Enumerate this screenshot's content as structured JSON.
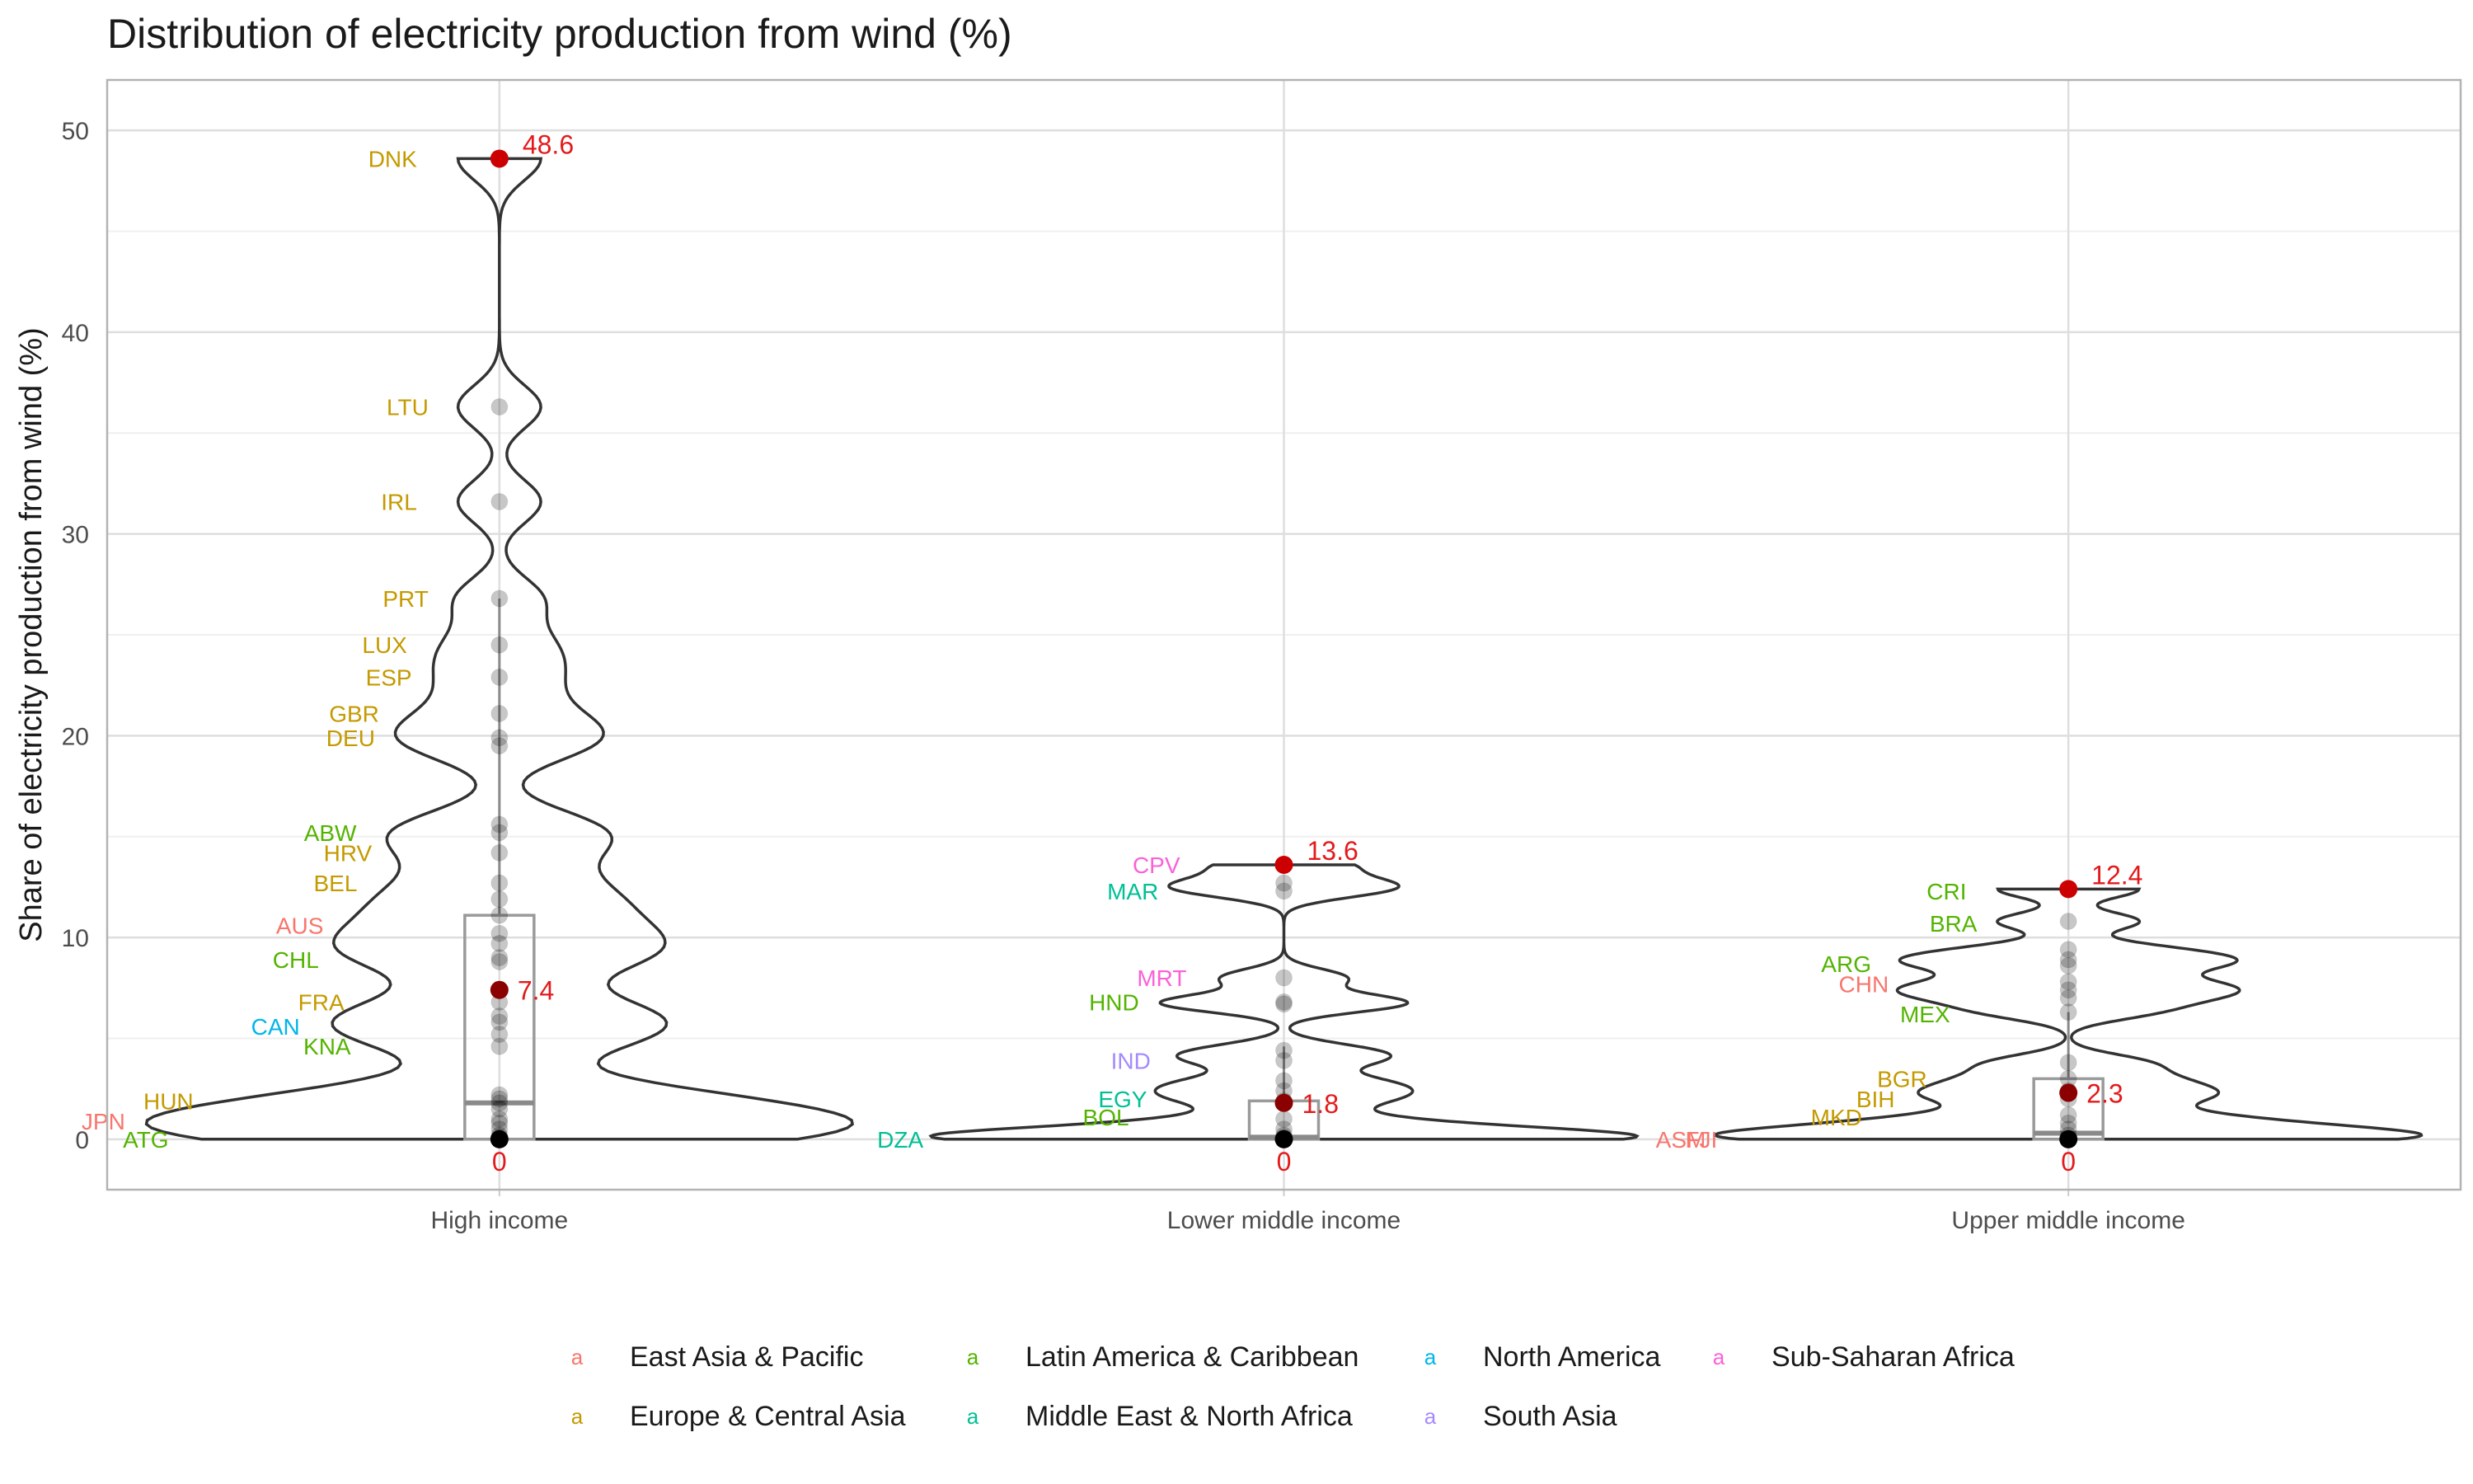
{
  "chart_data": {
    "type": "violin",
    "title": "Distribution of electricity production from wind (%)",
    "xlabel": "",
    "ylabel": "Share of electricity production from wind (%)",
    "ylim": [
      -2.5,
      52.5
    ],
    "yticks": [
      0,
      10,
      20,
      30,
      40,
      50
    ],
    "grid": true,
    "legend_position": "bottom",
    "legend_key_glyph": "a",
    "regions": [
      {
        "name": "East Asia & Pacific",
        "color": "#F8766D"
      },
      {
        "name": "Europe & Central Asia",
        "color": "#C49A00"
      },
      {
        "name": "Latin America & Caribbean",
        "color": "#53B400"
      },
      {
        "name": "Middle East & North Africa",
        "color": "#00C094"
      },
      {
        "name": "North America",
        "color": "#00B6EB"
      },
      {
        "name": "South Asia",
        "color": "#A58AFF"
      },
      {
        "name": "Sub-Saharan Africa",
        "color": "#FB61D7"
      }
    ],
    "categories": [
      "High income",
      "Lower middle income",
      "Upper middle income"
    ],
    "groups": [
      {
        "name": "High income",
        "min": 0,
        "q1": 0,
        "median": 1.8,
        "q3": 11.1,
        "max": 48.6,
        "whisker_high": 26.8,
        "mean": 7.4,
        "labels": {
          "max": "48.6",
          "mean": "7.4",
          "min": "0"
        },
        "points": [
          0,
          0,
          0.1,
          0.2,
          0.5,
          0.8,
          1.0,
          1.5,
          1.8,
          2.0,
          2.2,
          4.6,
          5.2,
          5.8,
          6.1,
          6.8,
          8.8,
          9.0,
          9.7,
          10.2,
          11.1,
          11.9,
          12.7,
          14.2,
          15.2,
          15.6,
          19.5,
          19.9,
          21.1,
          22.9,
          24.5,
          26.8,
          31.6,
          36.3,
          48.6
        ],
        "country_labels": [
          {
            "code": "DNK",
            "value": 48.6,
            "region": 1
          },
          {
            "code": "LTU",
            "value": 36.3,
            "region": 1
          },
          {
            "code": "IRL",
            "value": 31.6,
            "region": 1
          },
          {
            "code": "PRT",
            "value": 26.8,
            "region": 1
          },
          {
            "code": "LUX",
            "value": 24.5,
            "region": 1
          },
          {
            "code": "ESP",
            "value": 22.9,
            "region": 1
          },
          {
            "code": "GBR",
            "value": 21.1,
            "region": 1
          },
          {
            "code": "DEU",
            "value": 19.9,
            "region": 1
          },
          {
            "code": "ABW",
            "value": 15.2,
            "region": 2
          },
          {
            "code": "HRV",
            "value": 14.2,
            "region": 1
          },
          {
            "code": "BEL",
            "value": 12.7,
            "region": 1
          },
          {
            "code": "AUS",
            "value": 10.6,
            "region": 0
          },
          {
            "code": "CHL",
            "value": 8.9,
            "region": 2
          },
          {
            "code": "FRA",
            "value": 6.8,
            "region": 1
          },
          {
            "code": "CAN",
            "value": 5.6,
            "region": 4
          },
          {
            "code": "KNA",
            "value": 4.6,
            "region": 2
          },
          {
            "code": "HUN",
            "value": 1.9,
            "region": 1
          },
          {
            "code": "JPN",
            "value": 0.9,
            "region": 0
          },
          {
            "code": "ATG",
            "value": 0,
            "region": 2
          }
        ]
      },
      {
        "name": "Lower middle income",
        "min": 0,
        "q1": 0,
        "median": 0.1,
        "q3": 1.9,
        "max": 13.6,
        "whisker_high": 4.6,
        "mean": 1.8,
        "labels": {
          "max": "13.6",
          "mean": "1.8",
          "min": "0"
        },
        "points": [
          0,
          0,
          0,
          0.1,
          0.2,
          0.5,
          1.0,
          1.9,
          2.4,
          2.9,
          3.9,
          4.4,
          6.7,
          6.8,
          8.0,
          12.3,
          12.7,
          13.6
        ],
        "country_labels": [
          {
            "code": "CPV",
            "value": 13.6,
            "region": 6
          },
          {
            "code": "MAR",
            "value": 12.3,
            "region": 3
          },
          {
            "code": "MRT",
            "value": 8.0,
            "region": 6
          },
          {
            "code": "HND",
            "value": 6.8,
            "region": 2
          },
          {
            "code": "IND",
            "value": 3.9,
            "region": 5
          },
          {
            "code": "EGY",
            "value": 2.0,
            "region": 3
          },
          {
            "code": "BOL",
            "value": 1.1,
            "region": 2
          },
          {
            "code": "DZA",
            "value": 0,
            "region": 3
          }
        ]
      },
      {
        "name": "Upper middle income",
        "min": 0,
        "q1": 0,
        "median": 0.3,
        "q3": 3.0,
        "max": 12.4,
        "whisker_high": 6.3,
        "mean": 2.3,
        "labels": {
          "max": "12.4",
          "mean": "2.3",
          "min": "0"
        },
        "points": [
          0,
          0,
          0,
          0.2,
          0.5,
          0.8,
          1.2,
          2.0,
          2.4,
          3.0,
          3.8,
          6.3,
          7.0,
          7.4,
          7.8,
          8.6,
          8.9,
          9.4,
          10.8,
          12.4
        ],
        "country_labels": [
          {
            "code": "CRI",
            "value": 12.3,
            "region": 2
          },
          {
            "code": "BRA",
            "value": 10.7,
            "region": 2
          },
          {
            "code": "ARG",
            "value": 8.7,
            "region": 2
          },
          {
            "code": "CHN",
            "value": 7.7,
            "region": 0
          },
          {
            "code": "MEX",
            "value": 6.2,
            "region": 2
          },
          {
            "code": "BGR",
            "value": 3.0,
            "region": 1
          },
          {
            "code": "BIH",
            "value": 2.0,
            "region": 1
          },
          {
            "code": "MKD",
            "value": 1.1,
            "region": 1
          },
          {
            "code": "ASM",
            "value": 0,
            "region": 0
          },
          {
            "code": "FJI",
            "value": 0,
            "region": 0
          }
        ]
      }
    ]
  }
}
